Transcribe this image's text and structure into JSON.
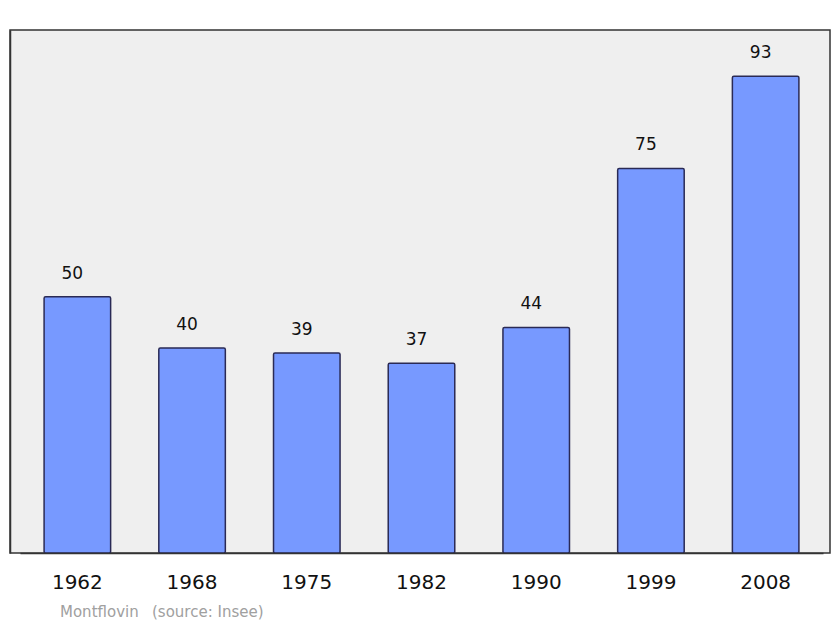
{
  "chart_data": {
    "type": "bar",
    "categories": [
      "1962",
      "1968",
      "1975",
      "1982",
      "1990",
      "1999",
      "2008"
    ],
    "values": [
      50,
      40,
      39,
      37,
      44,
      75,
      93
    ],
    "color": "#7799ff",
    "ylim": [
      0,
      102
    ],
    "data_labels": true,
    "tick_labels": "x",
    "grid": false,
    "annotations": [
      "Montflovin",
      "(source: Insee)"
    ]
  }
}
